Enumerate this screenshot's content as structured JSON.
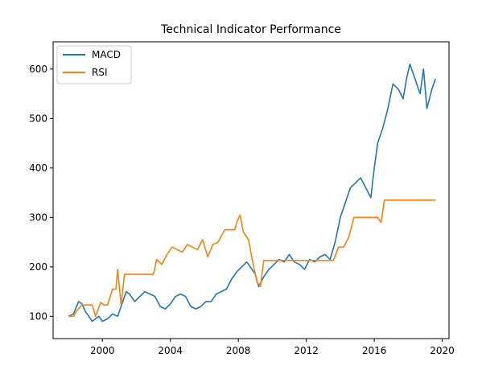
{
  "chart_data": {
    "type": "line",
    "title": "Technical Indicator Performance",
    "xlabel": "",
    "ylabel": "",
    "xlim": [
      1997.1,
      2020.4
    ],
    "ylim": [
      55,
      655
    ],
    "xticks": [
      2000,
      2004,
      2008,
      2012,
      2016,
      2020
    ],
    "yticks": [
      100,
      200,
      300,
      400,
      500,
      600
    ],
    "grid": false,
    "legend": "top-left",
    "series": [
      {
        "name": "MACD",
        "color": "#1f77b4",
        "x": [
          1998.0,
          1998.3,
          1998.6,
          1998.8,
          1999.0,
          1999.2,
          1999.4,
          1999.6,
          1999.8,
          2000.0,
          2000.3,
          2000.6,
          2000.9,
          2001.2,
          2001.4,
          2001.6,
          2001.9,
          2002.2,
          2002.5,
          2002.8,
          2003.1,
          2003.4,
          2003.7,
          2004.0,
          2004.3,
          2004.6,
          2004.9,
          2005.2,
          2005.5,
          2005.8,
          2006.1,
          2006.4,
          2006.7,
          2007.0,
          2007.3,
          2007.6,
          2007.9,
          2008.2,
          2008.5,
          2008.8,
          2009.0,
          2009.2,
          2009.5,
          2009.8,
          2010.1,
          2010.4,
          2010.7,
          2011.0,
          2011.3,
          2011.6,
          2011.9,
          2012.2,
          2012.5,
          2012.8,
          2013.1,
          2013.4,
          2013.7,
          2014.0,
          2014.3,
          2014.6,
          2014.9,
          2015.2,
          2015.5,
          2015.8,
          2016.0,
          2016.2,
          2016.5,
          2016.8,
          2017.1,
          2017.4,
          2017.7,
          2017.9,
          2018.1,
          2018.4,
          2018.7,
          2018.9,
          2019.1,
          2019.4,
          2019.6
        ],
        "values": [
          100,
          105,
          130,
          125,
          110,
          100,
          90,
          95,
          100,
          90,
          95,
          105,
          100,
          130,
          150,
          145,
          130,
          140,
          150,
          145,
          140,
          120,
          115,
          125,
          140,
          145,
          140,
          120,
          115,
          120,
          130,
          130,
          145,
          150,
          155,
          175,
          190,
          200,
          210,
          195,
          185,
          160,
          180,
          195,
          205,
          215,
          210,
          225,
          210,
          205,
          195,
          215,
          210,
          220,
          225,
          215,
          250,
          300,
          330,
          360,
          370,
          380,
          360,
          340,
          400,
          450,
          480,
          520,
          570,
          560,
          540,
          580,
          610,
          580,
          550,
          600,
          520,
          560,
          580
        ]
      },
      {
        "name": "RSI",
        "color": "#ff7f0e",
        "x": [
          1998.0,
          1998.3,
          1998.5,
          1998.8,
          1999.1,
          1999.4,
          1999.6,
          1999.9,
          2000.1,
          2000.3,
          2000.6,
          2000.8,
          2000.9,
          2001.1,
          2001.3,
          2001.6,
          2002.0,
          2002.5,
          2003.0,
          2003.2,
          2003.5,
          2003.8,
          2004.1,
          2004.4,
          2004.7,
          2005.0,
          2005.3,
          2005.6,
          2005.9,
          2006.2,
          2006.5,
          2006.8,
          2007.2,
          2007.5,
          2007.8,
          2007.9,
          2008.1,
          2008.3,
          2008.6,
          2008.9,
          2009.1,
          2009.3,
          2009.5,
          2009.8,
          2010.2,
          2010.7,
          2011.2,
          2011.7,
          2012.2,
          2012.7,
          2013.2,
          2013.6,
          2013.9,
          2014.2,
          2014.5,
          2014.8,
          2015.3,
          2015.8,
          2016.2,
          2016.4,
          2016.6,
          2017.0,
          2017.5,
          2018.0,
          2018.5,
          2019.0,
          2019.6
        ],
        "values": [
          100,
          100,
          112,
          123,
          123,
          123,
          100,
          128,
          123,
          123,
          155,
          155,
          195,
          123,
          185,
          185,
          185,
          185,
          185,
          215,
          205,
          225,
          240,
          235,
          230,
          245,
          240,
          235,
          255,
          220,
          245,
          250,
          275,
          275,
          275,
          290,
          305,
          270,
          255,
          200,
          170,
          160,
          213,
          213,
          213,
          213,
          213,
          213,
          213,
          213,
          213,
          213,
          240,
          240,
          260,
          300,
          300,
          300,
          300,
          290,
          335,
          335,
          335,
          335,
          335,
          335,
          335
        ]
      }
    ]
  }
}
